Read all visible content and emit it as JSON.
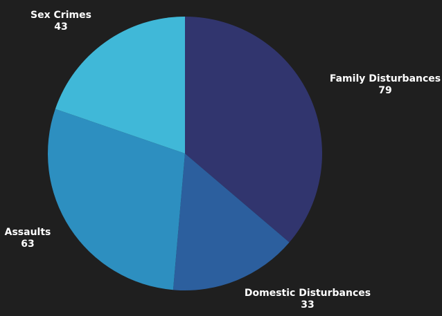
{
  "colors": {
    "background": "#1f1f1f",
    "label_text": "#ffffff"
  },
  "chart_data": {
    "type": "pie",
    "title": "",
    "start_angle_deg": 0,
    "direction": "clockwise",
    "slices": [
      {
        "label": "Family Disturbances",
        "value": 79,
        "color": "#31356e"
      },
      {
        "label": "Domestic Disturbances",
        "value": 33,
        "color": "#2c5f9e"
      },
      {
        "label": "Assaults",
        "value": 63,
        "color": "#2d8fc0"
      },
      {
        "label": "Sex Crimes",
        "value": 43,
        "color": "#40b8d8"
      }
    ]
  }
}
